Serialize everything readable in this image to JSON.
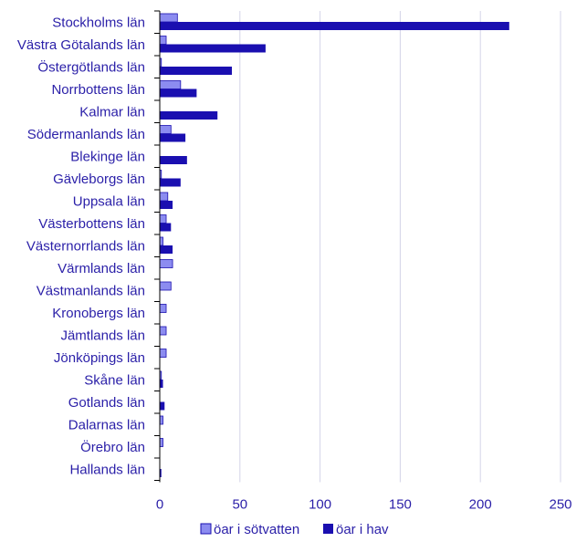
{
  "chart_data": {
    "type": "bar",
    "orientation": "horizontal",
    "categories": [
      "Stockholms län",
      "Västra Götalands län",
      "Östergötlands län",
      "Norrbottens län",
      "Kalmar län",
      "Södermanlands län",
      "Blekinge län",
      "Gävleborgs län",
      "Uppsala län",
      "Västerbottens län",
      "Västernorrlands län",
      "Värmlands län",
      "Västmanlands län",
      "Kronobergs län",
      "Jämtlands län",
      "Jönköpings län",
      "Skåne län",
      "Gotlands län",
      "Dalarnas län",
      "Örebro län",
      "Hallands län"
    ],
    "series": [
      {
        "name": "öar i sötvatten",
        "color": "#8c8cf0",
        "values": [
          11,
          4,
          1,
          13,
          0,
          7,
          0,
          1,
          5,
          4,
          2,
          8,
          7,
          4,
          4,
          4,
          1,
          0,
          2,
          2,
          0
        ]
      },
      {
        "name": "öar i hav",
        "color": "#1a0fb0",
        "values": [
          218,
          66,
          45,
          23,
          36,
          16,
          17,
          13,
          8,
          7,
          8,
          0,
          0,
          0,
          0,
          0,
          2,
          3,
          0,
          0,
          1
        ]
      }
    ],
    "xlim": [
      0,
      250
    ],
    "xticks": [
      0,
      50,
      100,
      150,
      200,
      250
    ],
    "grid": "vertical",
    "legend_position": "bottom"
  }
}
